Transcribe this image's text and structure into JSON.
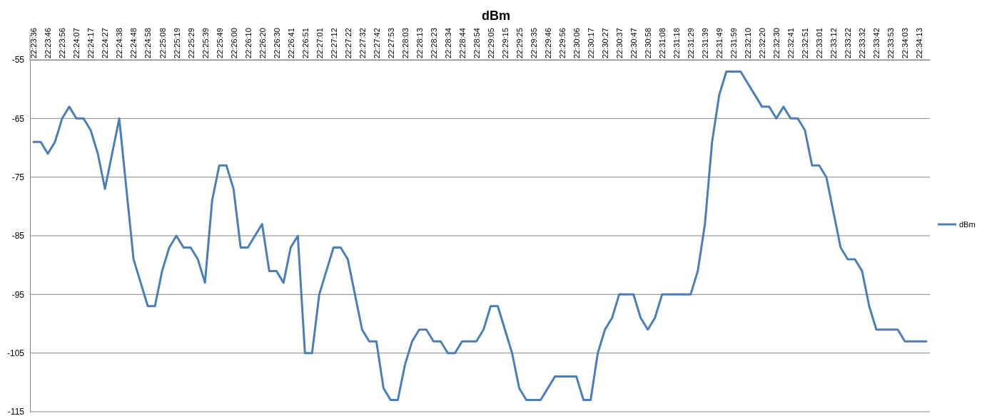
{
  "chart_data": {
    "type": "line",
    "title": "dBm",
    "categories": [
      "22:23:36",
      null,
      "22:23:46",
      null,
      "22:23:56",
      null,
      "22:24:07",
      null,
      "22:24:17",
      null,
      "22:24:27",
      null,
      "22:24:38",
      null,
      "22:24:48",
      null,
      "22:24:58",
      null,
      "22:25:08",
      null,
      "22:25:19",
      null,
      "22:25:29",
      null,
      "22:25:39",
      null,
      "22:25:49",
      null,
      "22:26:00",
      null,
      "22:26:10",
      null,
      "22:26:20",
      null,
      "22:26:30",
      null,
      "22:26:41",
      null,
      "22:26:51",
      null,
      "22:27:01",
      null,
      "22:27:12",
      null,
      "22:27:22",
      null,
      "22:27:32",
      null,
      "22:27:42",
      null,
      "22:27:53",
      null,
      "22:28:03",
      null,
      "22:28:13",
      null,
      "22:28:23",
      null,
      "22:28:34",
      null,
      "22:28:44",
      null,
      "22:28:54",
      null,
      "22:29:05",
      null,
      "22:29:15",
      null,
      "22:29:25",
      null,
      "22:29:35",
      null,
      "22:29:46",
      null,
      "22:29:56",
      null,
      "22:30:06",
      null,
      "22:30:17",
      null,
      "22:30:27",
      null,
      "22:30:37",
      null,
      "22:30:47",
      null,
      "22:30:58",
      null,
      "22:31:08",
      null,
      "22:31:18",
      null,
      "22:31:29",
      null,
      "22:31:39",
      null,
      "22:31:49",
      null,
      "22:31:59",
      null,
      "22:32:10",
      null,
      "22:32:20",
      null,
      "22:32:30",
      null,
      "22:32:41",
      null,
      "22:32:51",
      null,
      "22:33:01",
      null,
      "22:33:12",
      null,
      "22:33:22",
      null,
      "22:33:32",
      null,
      "22:33:42",
      null,
      "22:33:53",
      null,
      "22:34:03",
      null,
      "22:34:13",
      null
    ],
    "series": [
      {
        "name": "dBm",
        "color": "#4a7ebb",
        "values": [
          -69,
          -69,
          -71,
          -69,
          -65,
          -63,
          -65,
          -65,
          -67,
          -71,
          -77,
          -71,
          -65,
          -77,
          -89,
          -93,
          -97,
          -97,
          -91,
          -87,
          -85,
          -87,
          -87,
          -89,
          -93,
          -79,
          -73,
          -73,
          -77,
          -87,
          -87,
          -85,
          -83,
          -91,
          -91,
          -93,
          -87,
          -85,
          -105,
          -105,
          -95,
          -91,
          -87,
          -87,
          -89,
          -95,
          -101,
          -103,
          -103,
          -111,
          -113,
          -113,
          -107,
          -103,
          -101,
          -101,
          -103,
          -103,
          -105,
          -105,
          -103,
          -103,
          -103,
          -101,
          -97,
          -97,
          -101,
          -105,
          -111,
          -113,
          -113,
          -113,
          -111,
          -109,
          -109,
          -109,
          -109,
          -113,
          -113,
          -105,
          -101,
          -99,
          -95,
          -95,
          -95,
          -99,
          -101,
          -99,
          -95,
          -95,
          -95,
          -95,
          -95,
          -91,
          -83,
          -69,
          -61,
          -57,
          -57,
          -57,
          -59,
          -61,
          -63,
          -63,
          -65,
          -63,
          -65,
          -65,
          -67,
          -73,
          -73,
          -75,
          -81,
          -87,
          -89,
          -89,
          -91,
          -97,
          -101,
          -101,
          -101,
          -101,
          -103,
          -103,
          -103,
          -103
        ]
      }
    ],
    "ylim": [
      -115,
      -55
    ],
    "yticks": [
      -55,
      -65,
      -75,
      -85,
      -95,
      -105,
      -115
    ],
    "grid": "y",
    "legend": "right",
    "marker": "none",
    "line_style": "solid"
  }
}
